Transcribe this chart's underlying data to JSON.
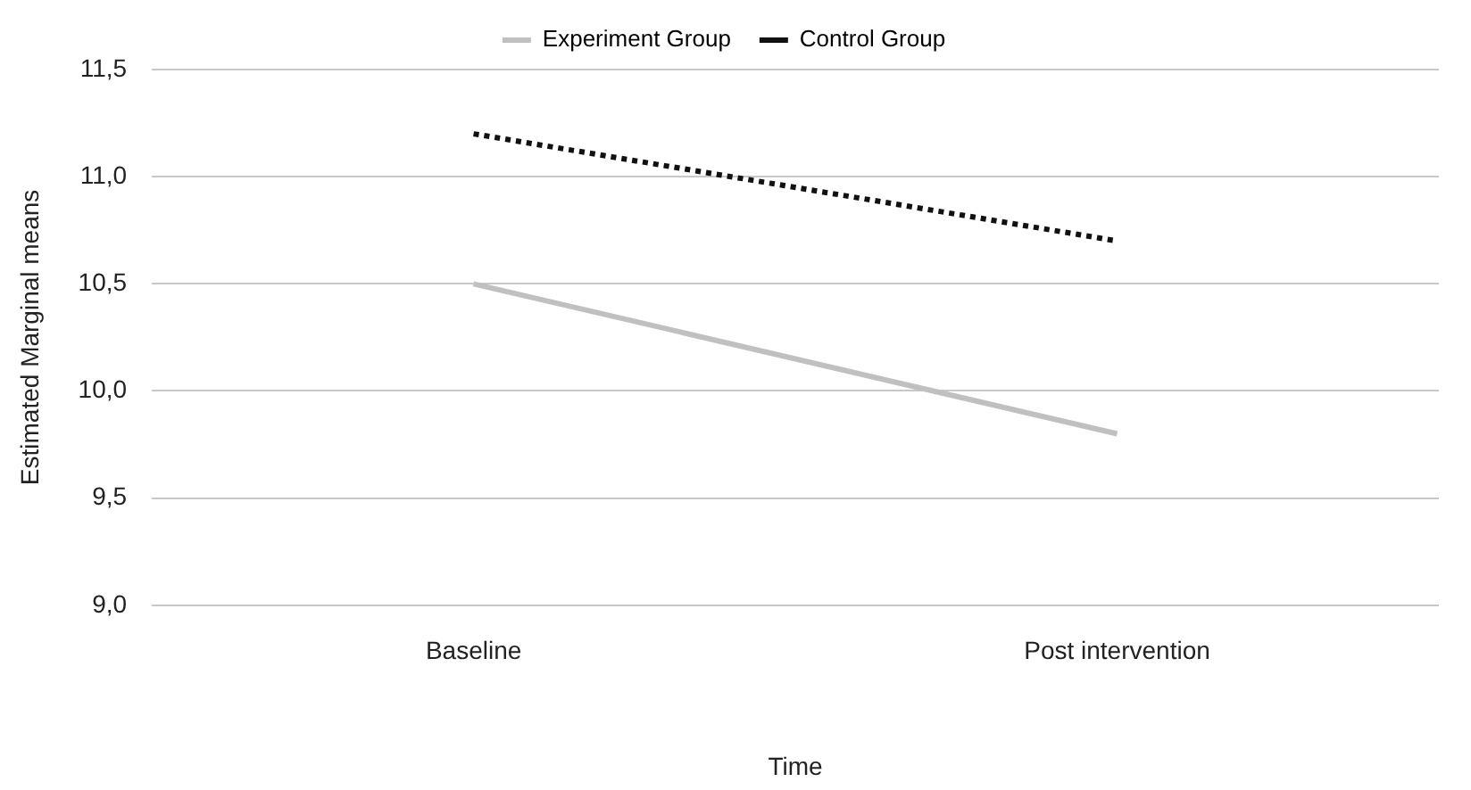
{
  "chart_data": {
    "type": "line",
    "xlabel": "Time",
    "ylabel": "Estimated Marginal means",
    "categories": [
      "Baseline",
      "Post intervention"
    ],
    "series": [
      {
        "name": "Experiment Group",
        "color": "#c0c0c0",
        "values": [
          10.5,
          9.8
        ],
        "line_style": "solid"
      },
      {
        "name": "Control Group",
        "color": "#111111",
        "values": [
          11.2,
          10.7
        ],
        "line_style": "dotted"
      }
    ],
    "ylim": [
      9,
      11.5
    ],
    "yticks": [
      {
        "value": 9,
        "label": "9,0"
      },
      {
        "value": 9.5,
        "label": "9,5"
      },
      {
        "value": 10,
        "label": "10,0"
      },
      {
        "value": 10.5,
        "label": "10,5"
      },
      {
        "value": 11,
        "label": "11,0"
      },
      {
        "value": 11.5,
        "label": "11,5"
      }
    ],
    "grid": "y",
    "legend": "top",
    "marker": "none"
  }
}
